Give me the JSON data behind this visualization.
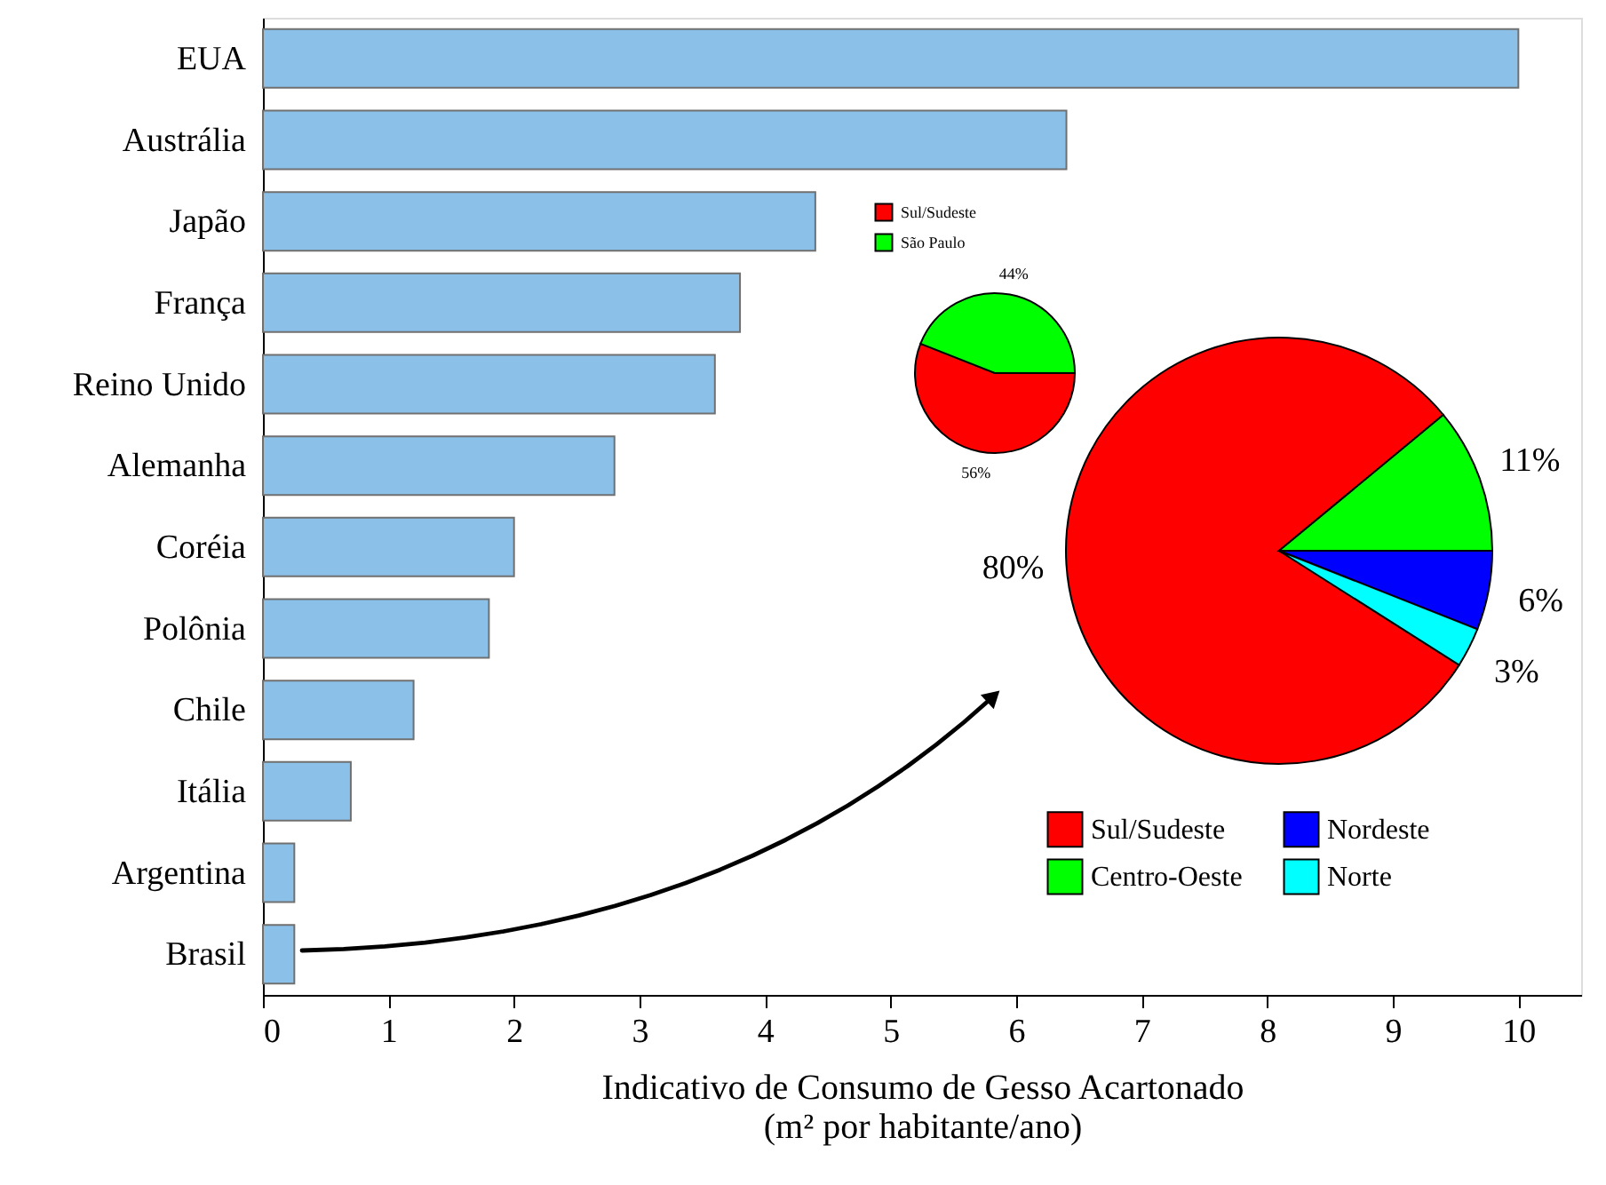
{
  "chart_data": [
    {
      "type": "bar",
      "orientation": "horizontal",
      "xlabel": "Indicativo de Consumo de Gesso Acartonado\n(m² por habitante/ano)",
      "categories": [
        "EUA",
        "Austrália",
        "Japão",
        "França",
        "Reino Unido",
        "Alemanha",
        "Coréia",
        "Polônia",
        "Chile",
        "Itália",
        "Argentina",
        "Brasil"
      ],
      "values": [
        10,
        6.4,
        4.4,
        3.8,
        3.6,
        2.8,
        2.0,
        1.8,
        1.2,
        0.7,
        0.25,
        0.25
      ],
      "color": "#8bc0e8",
      "xlim": [
        0,
        10.5
      ],
      "xticks": [
        0,
        1,
        2,
        3,
        4,
        5,
        6,
        7,
        8,
        9,
        10
      ],
      "grid": false
    },
    {
      "type": "pie",
      "categories": [
        "Sul/Sudeste",
        "Centro-Oeste",
        "Nordeste",
        "Norte"
      ],
      "values": [
        80,
        11,
        6,
        3
      ],
      "colors": [
        "#ff0000",
        "#00ff00",
        "#0000ff",
        "#00ffff"
      ],
      "value_labels": [
        "80%",
        "11%",
        "6%",
        "3%"
      ],
      "legend": "bottom"
    },
    {
      "type": "pie",
      "categories": [
        "Sul/Sudeste",
        "São Paulo"
      ],
      "values": [
        56,
        44
      ],
      "colors": [
        "#ff0000",
        "#00ff00"
      ],
      "value_labels": [
        "56%",
        "44%"
      ],
      "legend": "top left"
    }
  ]
}
